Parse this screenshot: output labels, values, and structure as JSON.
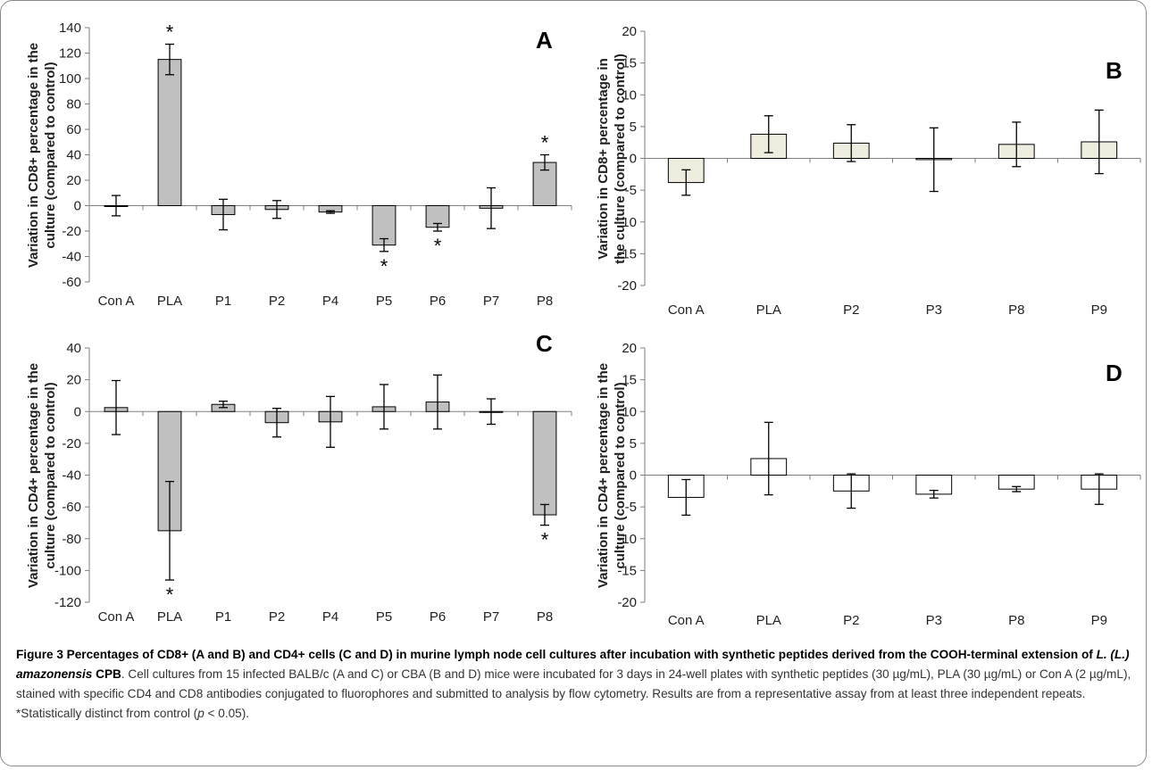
{
  "chart_data": [
    {
      "panel": "A",
      "type": "bar",
      "ylabel": [
        "Variation in CD8+ percentage in the",
        "culture (compared to control)"
      ],
      "categories": [
        "Con A",
        "PLA",
        "P1",
        "P2",
        "P4",
        "P5",
        "P6",
        "P7",
        "P8"
      ],
      "values": [
        0,
        115,
        -7,
        -3,
        -5,
        -31,
        -17,
        -2,
        34
      ],
      "errors": [
        8,
        12,
        12,
        7,
        1,
        5,
        3,
        16,
        6
      ],
      "significant": [
        false,
        true,
        false,
        false,
        false,
        true,
        true,
        false,
        true
      ],
      "ylim": [
        -60,
        140
      ],
      "yticks": [
        -60,
        -40,
        -20,
        0,
        20,
        40,
        60,
        80,
        100,
        120,
        140
      ],
      "bar_color": "#c0c0c0",
      "grid": false
    },
    {
      "panel": "B",
      "type": "bar",
      "ylabel": [
        "Variation in CD8+ percentage in",
        "the culture (compared to control)"
      ],
      "categories": [
        "Con A",
        "PLA",
        "P2",
        "P3",
        "P8",
        "P9"
      ],
      "values": [
        -3.8,
        3.8,
        2.4,
        -0.2,
        2.2,
        2.6
      ],
      "errors": [
        2.0,
        2.9,
        2.9,
        5.0,
        3.5,
        5.0
      ],
      "significant": [
        false,
        false,
        false,
        false,
        false,
        false
      ],
      "ylim": [
        -20,
        20
      ],
      "yticks": [
        -20,
        -15,
        -10,
        -5,
        0,
        5,
        10,
        15,
        20
      ],
      "bar_color": "#eeecdf",
      "grid": false
    },
    {
      "panel": "C",
      "type": "bar",
      "ylabel": [
        "Variation in CD4+ percentage in the",
        "culture (compared to control)"
      ],
      "categories": [
        "Con A",
        "PLA",
        "P1",
        "P2",
        "P4",
        "P5",
        "P6",
        "P7",
        "P8"
      ],
      "values": [
        2.5,
        -75,
        4.5,
        -7,
        -6.5,
        3,
        6,
        0,
        -65
      ],
      "errors": [
        17,
        31,
        2,
        9,
        16,
        14,
        17,
        8,
        6.5
      ],
      "significant": [
        false,
        true,
        false,
        false,
        false,
        false,
        false,
        false,
        true
      ],
      "ylim": [
        -120,
        40
      ],
      "yticks": [
        -120,
        -100,
        -80,
        -60,
        -40,
        -20,
        0,
        20,
        40
      ],
      "bar_color": "#c0c0c0",
      "grid": false
    },
    {
      "panel": "D",
      "type": "bar",
      "ylabel": [
        "Variation in CD4+ percentage in the",
        "culture (compared to control)"
      ],
      "categories": [
        "Con A",
        "PLA",
        "P2",
        "P3",
        "P8",
        "P9"
      ],
      "values": [
        -3.5,
        2.6,
        -2.5,
        -3.0,
        -2.2,
        -2.2
      ],
      "errors": [
        2.8,
        5.7,
        2.7,
        0.6,
        0.4,
        2.4
      ],
      "significant": [
        false,
        false,
        false,
        false,
        false,
        false
      ],
      "ylim": [
        -20,
        20
      ],
      "yticks": [
        -20,
        -15,
        -10,
        -5,
        0,
        5,
        10,
        15,
        20
      ],
      "bar_color": "#ffffff",
      "grid": false
    }
  ],
  "caption": {
    "label": "Figure 3",
    "title_part1": "Percentages of CD8+ (A and B) and CD4+ cells (C and D) in murine lymph node cell cultures after incubation with synthetic peptides derived from the COOH-terminal extension of ",
    "title_species": "L. (L.) amazonensis",
    "title_part2": " CPB",
    "body_part1": ". Cell cultures from 15 infected BALB/c (A and C) or CBA (B and D) mice were incubated for 3 days in 24-well plates with synthetic peptides (30 µg/mL), PLA (30 µg/mL) or Con A (2 µg/mL), stained with specific CD4 and CD8 antibodies conjugated to fluorophores and submitted to analysis by flow cytometry. Results are from a representative assay from at least three independent repeats. *Statistically distinct from control (",
    "body_p": "p",
    "body_part2": " < 0.05)."
  }
}
